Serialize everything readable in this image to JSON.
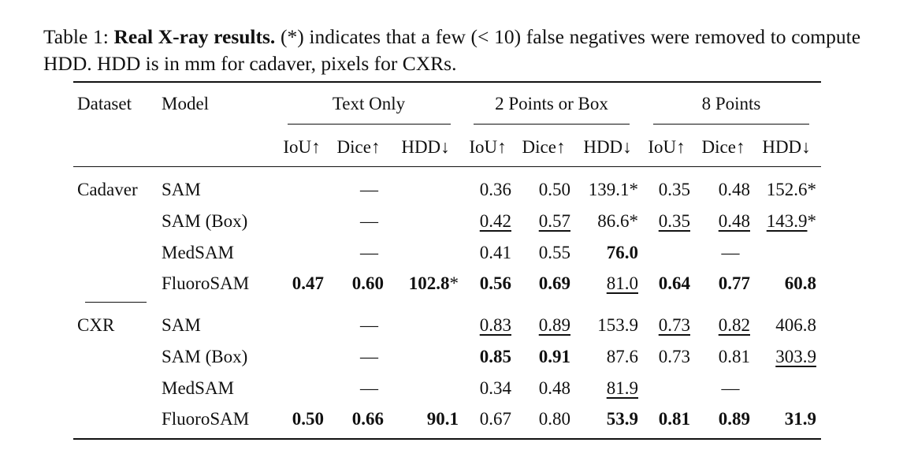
{
  "caption": {
    "label": "Table 1:",
    "title": "Real X-ray results.",
    "text": "(*) indicates that a few (< 10) false negatives were removed to compute HDD. HDD is in mm for cadaver, pixels for CXRs."
  },
  "table": {
    "header": {
      "dataset": "Dataset",
      "model": "Model",
      "groups": [
        "Text Only",
        "2 Points or Box",
        "8 Points"
      ],
      "columns": [
        "IoU↑",
        "Dice↑",
        "HDD↓",
        "IoU↑",
        "Dice↑",
        "HDD↓",
        "IoU↑",
        "Dice↑",
        "HDD↓"
      ]
    },
    "sections": [
      {
        "dataset": "Cadaver",
        "rows": [
          {
            "model": "SAM",
            "cells": [
              {
                "text": "—",
                "span": 3
              },
              "0.36",
              "0.50",
              "139.1*",
              "0.35",
              "0.48",
              "152.6*"
            ]
          },
          {
            "model": "SAM (Box)",
            "cells": [
              {
                "text": "—",
                "span": 3
              },
              {
                "text": "0.42",
                "style": "underline"
              },
              {
                "text": "0.57",
                "style": "underline"
              },
              "86.6*",
              {
                "text": "0.35",
                "style": "underline"
              },
              {
                "text": "0.48",
                "style": "underline"
              },
              {
                "text": "143.9",
                "style": "underline",
                "note": "*"
              }
            ]
          },
          {
            "model": "MedSAM",
            "cells": [
              {
                "text": "—",
                "span": 3
              },
              "0.41",
              "0.55",
              {
                "text": "76.0",
                "style": "bold"
              },
              {
                "text": "—",
                "span": 3
              }
            ]
          },
          {
            "model": "FluoroSAM",
            "cells": [
              {
                "text": "0.47",
                "style": "bold"
              },
              {
                "text": "0.60",
                "style": "bold"
              },
              {
                "text": "102.8",
                "style": "bold",
                "note": "*"
              },
              {
                "text": "0.56",
                "style": "bold"
              },
              {
                "text": "0.69",
                "style": "bold"
              },
              {
                "text": "81.0",
                "style": "underline"
              },
              {
                "text": "0.64",
                "style": "bold"
              },
              {
                "text": "0.77",
                "style": "bold"
              },
              {
                "text": "60.8",
                "style": "bold"
              }
            ]
          }
        ]
      },
      {
        "dataset": "CXR",
        "rows": [
          {
            "model": "SAM",
            "cells": [
              {
                "text": "—",
                "span": 3
              },
              {
                "text": "0.83",
                "style": "underline"
              },
              {
                "text": "0.89",
                "style": "underline"
              },
              "153.9",
              {
                "text": "0.73",
                "style": "underline"
              },
              {
                "text": "0.82",
                "style": "underline"
              },
              "406.8"
            ]
          },
          {
            "model": "SAM (Box)",
            "cells": [
              {
                "text": "—",
                "span": 3
              },
              {
                "text": "0.85",
                "style": "bold"
              },
              {
                "text": "0.91",
                "style": "bold"
              },
              "87.6",
              "0.73",
              "0.81",
              {
                "text": "303.9",
                "style": "underline"
              }
            ]
          },
          {
            "model": "MedSAM",
            "cells": [
              {
                "text": "—",
                "span": 3
              },
              "0.34",
              "0.48",
              {
                "text": "81.9",
                "style": "underline"
              },
              {
                "text": "—",
                "span": 3
              }
            ]
          },
          {
            "model": "FluoroSAM",
            "cells": [
              {
                "text": "0.50",
                "style": "bold"
              },
              {
                "text": "0.66",
                "style": "bold"
              },
              {
                "text": "90.1",
                "style": "bold"
              },
              "0.67",
              "0.80",
              {
                "text": "53.9",
                "style": "bold"
              },
              {
                "text": "0.81",
                "style": "bold"
              },
              {
                "text": "0.89",
                "style": "bold"
              },
              {
                "text": "31.9",
                "style": "bold"
              }
            ]
          }
        ]
      }
    ]
  }
}
